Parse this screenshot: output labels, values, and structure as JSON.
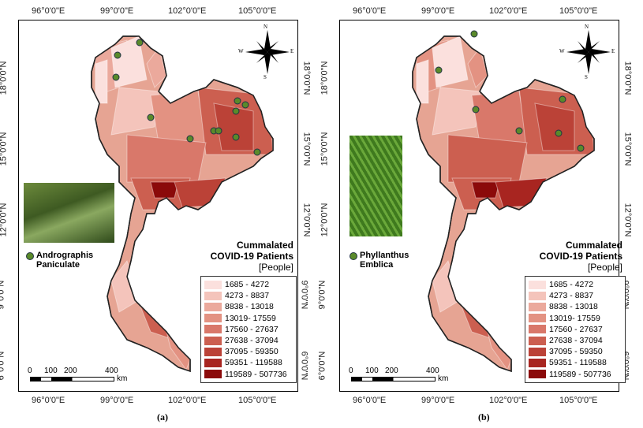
{
  "longitude_ticks": [
    "96°0'0\"E",
    "99°0'0\"E",
    "102°0'0\"E",
    "105°0'0\"E"
  ],
  "latitude_ticks": [
    "18°0'0\"N",
    "15°0'0\"N",
    "12°0'0\"N",
    "9°0'0\"N",
    "6°0'0\"N"
  ],
  "compass": {
    "n": "N",
    "s": "S",
    "e": "E",
    "w": "W"
  },
  "legend": {
    "title_line1": "Cummalated",
    "title_line2": "COVID-19 Patients",
    "unit": "[People]",
    "classes": [
      {
        "label": "1685 - 4272",
        "color": "#fbe0dd"
      },
      {
        "label": "4273 - 8837",
        "color": "#f4c4bb"
      },
      {
        "label": "8838 - 13018",
        "color": "#eba99c"
      },
      {
        "label": "13019- 17559",
        "color": "#e39282"
      },
      {
        "label": "17560 - 27637",
        "color": "#d9786a"
      },
      {
        "label": "27638 - 37094",
        "color": "#cc5f50"
      },
      {
        "label": "37095 - 59350",
        "color": "#bb4237"
      },
      {
        "label": "59351 - 119588",
        "color": "#a82520"
      },
      {
        "label": "119589 - 507736",
        "color": "#8b0a0a"
      }
    ]
  },
  "scale_bar": {
    "labels": [
      "0",
      "100",
      "200",
      "400"
    ],
    "unit": "km"
  },
  "panels": [
    {
      "caption": "(a)",
      "species_line1": "Andrographis",
      "species_line2": "Paniculate"
    },
    {
      "caption": "(b)",
      "species_line1": "Phyllanthus",
      "species_line2": "Emblica"
    }
  ]
}
